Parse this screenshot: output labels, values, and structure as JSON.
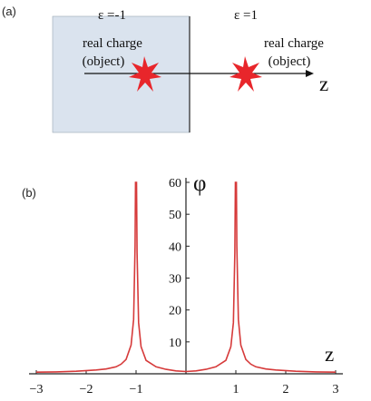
{
  "panel_a": {
    "label": "(a)",
    "left_medium": {
      "epsilon": "ε =-1",
      "charge_line1": "real charge",
      "charge_line2": "(object)",
      "fill": "#dae3ee"
    },
    "right_medium": {
      "epsilon": "ε =1",
      "charge_line1": "real charge",
      "charge_line2": "(object)"
    },
    "axis_label": "z",
    "star_color": "#e8262b"
  },
  "panel_b": {
    "label": "(b)",
    "y_axis_label": "φ",
    "x_axis_label": "z",
    "curve_color": "#d63a3a",
    "chart_data": {
      "type": "line",
      "xlim": [
        -3,
        3
      ],
      "ylim": [
        0,
        60
      ],
      "x_ticks": [
        "−3",
        "−2",
        "−1",
        "1",
        "2",
        "3"
      ],
      "x_tick_values": [
        -3,
        -2,
        -1,
        1,
        2,
        3
      ],
      "y_ticks": [
        "10",
        "20",
        "30",
        "40",
        "50",
        "60"
      ],
      "y_tick_values": [
        10,
        20,
        30,
        40,
        50,
        60
      ],
      "series": [
        {
          "x": [
            -3.0,
            -2.6,
            -2.2,
            -1.8,
            -1.6,
            -1.4,
            -1.3,
            -1.2,
            -1.1,
            -1.05,
            -1.02,
            -1.01,
            -1.0,
            -0.99,
            -0.98,
            -0.95,
            -0.9,
            -0.8,
            -0.6,
            -0.4,
            -0.2,
            0.0,
            0.2,
            0.4,
            0.6,
            0.8,
            0.9,
            0.95,
            0.98,
            0.99,
            1.0,
            1.01,
            1.02,
            1.05,
            1.1,
            1.2,
            1.3,
            1.4,
            1.6,
            1.8,
            2.2,
            2.6,
            3.0
          ],
          "y": [
            0.5,
            0.6,
            0.8,
            1.2,
            1.5,
            2.2,
            3,
            4.5,
            9,
            17,
            40,
            60,
            60,
            60,
            38,
            16,
            8.5,
            4.2,
            2.2,
            1.4,
            0.9,
            0.7,
            0.9,
            1.4,
            2.2,
            4.2,
            8.5,
            16,
            38,
            60,
            60,
            60,
            40,
            17,
            9,
            4.5,
            3,
            2.2,
            1.5,
            1.2,
            0.8,
            0.6,
            0.5
          ]
        }
      ]
    }
  }
}
